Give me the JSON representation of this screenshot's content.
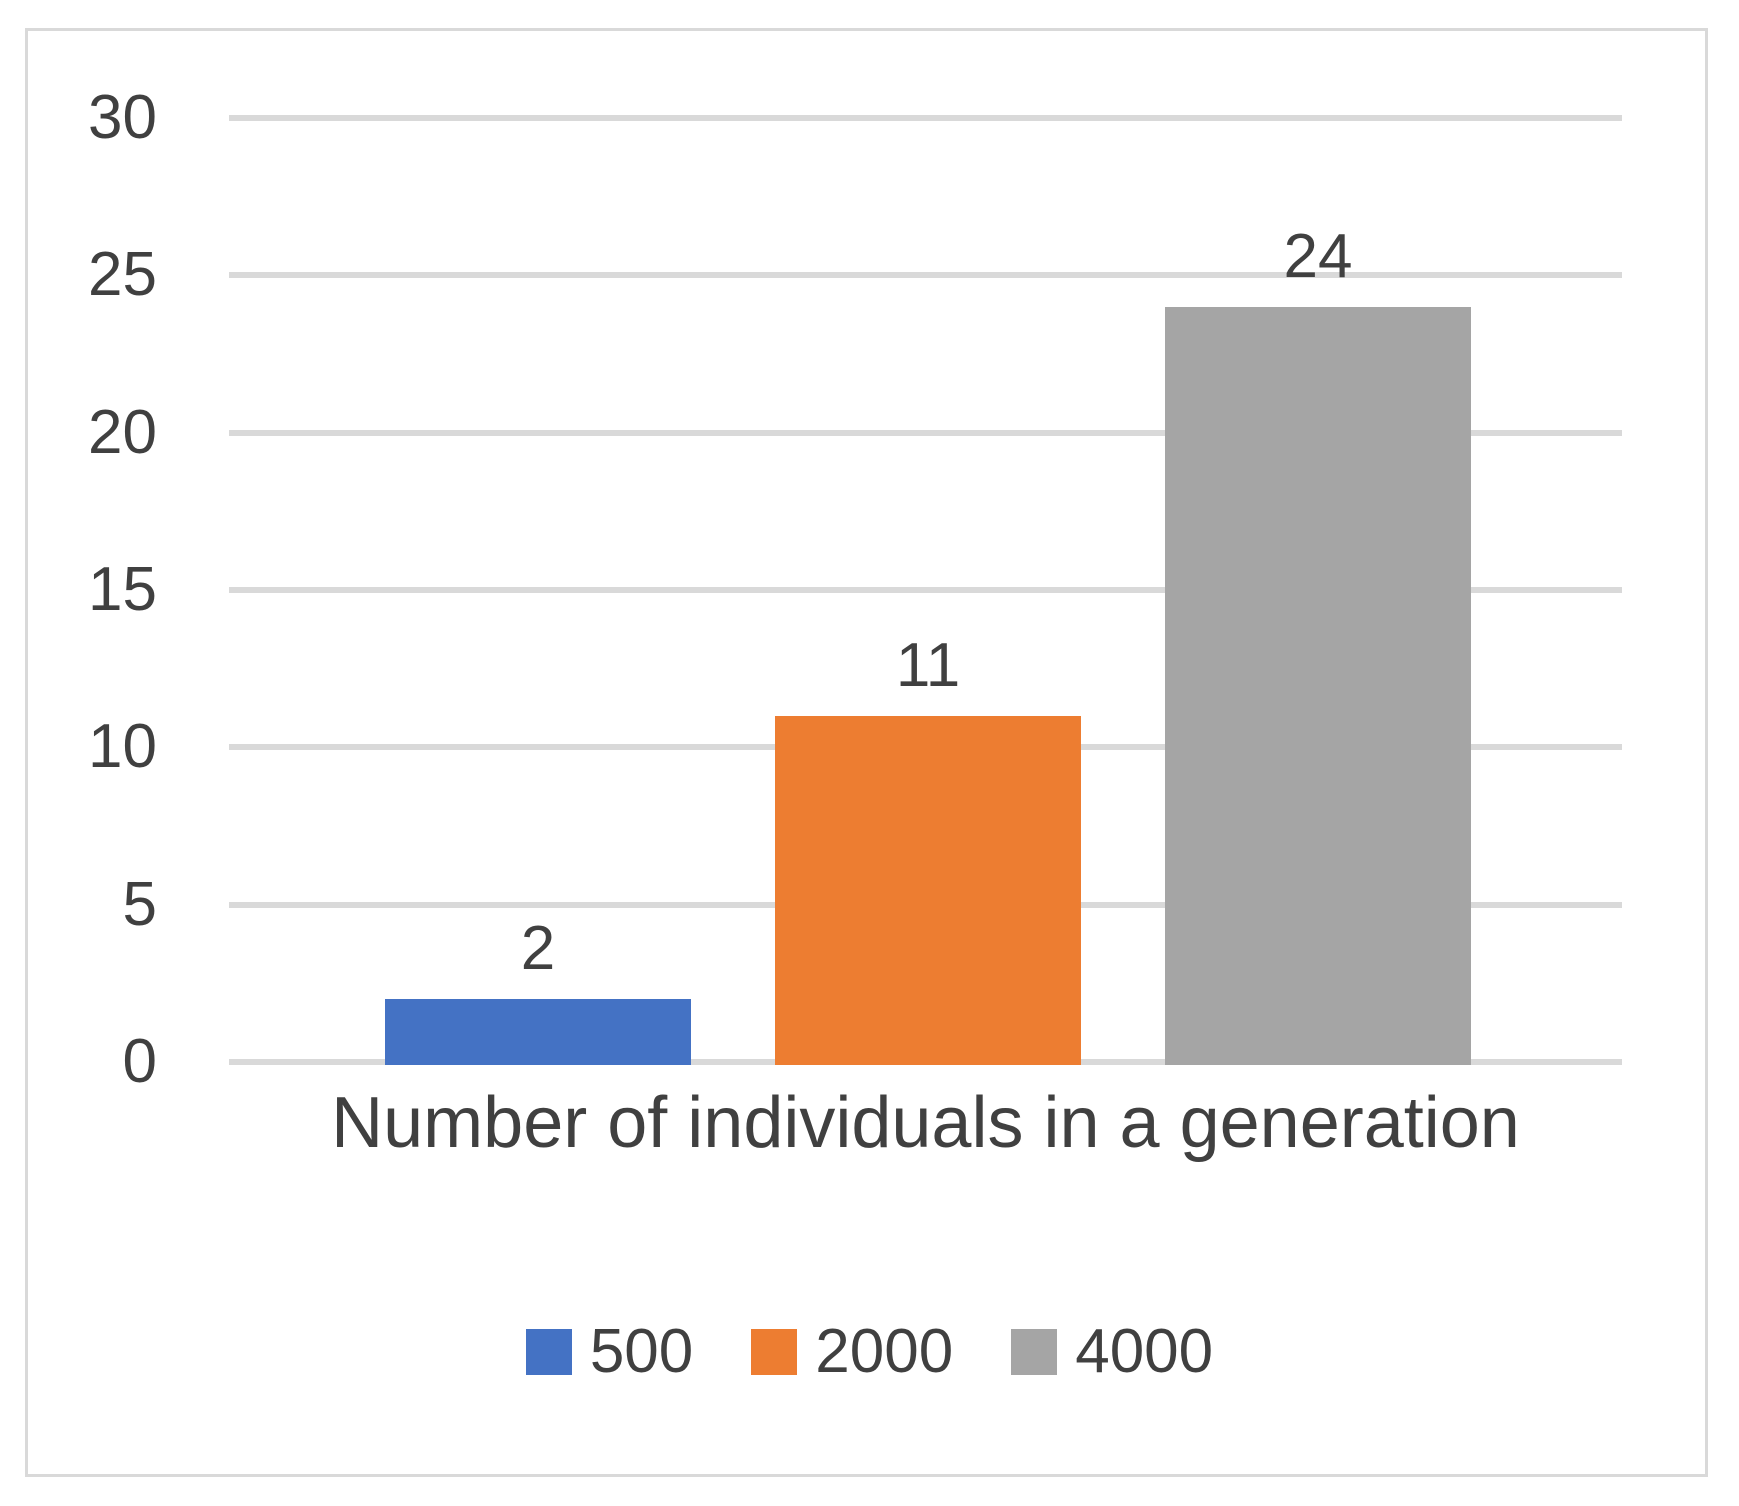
{
  "chart_data": {
    "type": "bar",
    "xlabel": "Number of individuals in a generation",
    "categories": [
      "500",
      "2000",
      "4000"
    ],
    "values": [
      2,
      11,
      24
    ],
    "data_labels": [
      "2",
      "11",
      "24"
    ],
    "y_ticks": [
      0,
      5,
      10,
      15,
      20,
      25,
      30
    ],
    "ylim": [
      0,
      30
    ],
    "grid": true,
    "legend_position": "bottom",
    "series_colors": [
      "#4472C4",
      "#ED7D31",
      "#A5A5A5"
    ],
    "legend": [
      {
        "label": "500",
        "color": "#4472C4"
      },
      {
        "label": "2000",
        "color": "#ED7D31"
      },
      {
        "label": "4000",
        "color": "#A5A5A5"
      }
    ]
  },
  "colors": {
    "text": "#404040",
    "gridline": "#D9D9D9",
    "border": "#D9D9D9",
    "background": "#FFFFFF"
  }
}
